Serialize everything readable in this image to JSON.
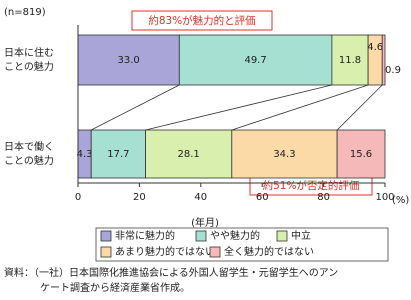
{
  "chart_data": {
    "type": "stacked-bar-horizontal",
    "subtitle": "(n=819)",
    "categories": [
      [
        "日本に住む",
        "ことの魅力"
      ],
      [
        "日本で働く",
        "ことの魅力"
      ]
    ],
    "series": [
      {
        "name": "非常に魅力的",
        "color": "#aaa5d8",
        "values": [
          33.0,
          4.3
        ],
        "value_labels": [
          "33.0",
          "4.3"
        ]
      },
      {
        "name": "やや魅力的",
        "color": "#a6e0d2",
        "values": [
          49.7,
          17.7
        ],
        "value_labels": [
          "49.7",
          "17.7"
        ]
      },
      {
        "name": "中立",
        "color": "#d8efae",
        "values": [
          11.8,
          28.1
        ],
        "value_labels": [
          "11.8",
          "28.1"
        ]
      },
      {
        "name": "あまり魅力的ではない",
        "color": "#fcdaa8",
        "values": [
          4.6,
          34.3
        ],
        "value_labels": [
          "4.6",
          "34.3"
        ]
      },
      {
        "name": "全く魅力的ではない",
        "color": "#f5b9b9",
        "values": [
          0.9,
          15.6
        ],
        "value_labels": [
          "0.9",
          "15.6"
        ]
      }
    ],
    "xlim": [
      0,
      100
    ],
    "xticks": [
      0,
      20,
      40,
      60,
      80,
      100
    ],
    "x_unit": "(%)",
    "x_label": "(年月)",
    "annotations": [
      "約83%が魅力的と評価",
      "約51%が否定的評価"
    ],
    "source": [
      "資料：（一社）日本国際化推進協会による外国人留学生・元留学生へのアン",
      "ケート調査から経済産業省作成。"
    ]
  }
}
